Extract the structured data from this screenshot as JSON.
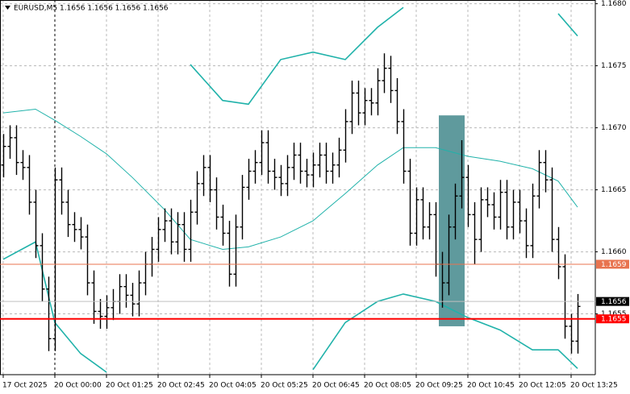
{
  "chart_data": {
    "type": "ohlc",
    "title": "EURUSD,M5 1.1656 1.1656 1.1656 1.1656",
    "color": "#000000",
    "open": [
      1.1667,
      1.16685,
      1.16692,
      1.16672,
      1.16668,
      1.1664,
      1.16605,
      1.1657,
      1.1653,
      1.16658,
      1.1664,
      1.16622,
      1.16618,
      1.16612,
      1.16575,
      1.16552,
      1.16548,
      1.16555,
      1.1656,
      1.16572,
      1.16565,
      1.16558,
      1.16575,
      1.1659,
      1.16602,
      1.16618,
      1.16625,
      1.16608,
      1.16622,
      1.16602,
      1.16632,
      1.16655,
      1.16668,
      1.1665,
      1.16628,
      1.16615,
      1.16582,
      1.1662,
      1.16652,
      1.16665,
      1.16672,
      1.16688,
      1.16665,
      1.1666,
      1.16655,
      1.16668,
      1.16678,
      1.16665,
      1.16662,
      1.1667,
      1.16678,
      1.16665,
      1.1667,
      1.16682,
      1.16705,
      1.16728,
      1.16712,
      1.16722,
      1.1672,
      1.16738,
      1.16748,
      1.1673,
      1.16705,
      1.16665,
      1.16615,
      1.16642,
      1.1662,
      1.1663,
      1.1659,
      1.16575,
      1.1662,
      1.16645,
      1.1666,
      1.1663,
      1.1661,
      1.16642,
      1.16638,
      1.16628,
      1.16648,
      1.1662,
      1.1664,
      1.16625,
      1.16605,
      1.16645,
      1.16672,
      1.16658,
      1.1661,
      1.16588,
      1.1654,
      1.16528
    ],
    "high": [
      1.16695,
      1.16702,
      1.16702,
      1.16682,
      1.16678,
      1.1665,
      1.16615,
      1.1658,
      1.16668,
      1.16668,
      1.1665,
      1.16632,
      1.16628,
      1.16622,
      1.16585,
      1.16562,
      1.16565,
      1.1657,
      1.16582,
      1.16582,
      1.16575,
      1.16585,
      1.166,
      1.16612,
      1.16628,
      1.16635,
      1.16635,
      1.16632,
      1.16632,
      1.16642,
      1.16665,
      1.16678,
      1.16678,
      1.1666,
      1.16638,
      1.16625,
      1.1663,
      1.16662,
      1.16675,
      1.16682,
      1.16698,
      1.16698,
      1.16675,
      1.1667,
      1.16678,
      1.16688,
      1.16688,
      1.16675,
      1.1668,
      1.16688,
      1.16688,
      1.1668,
      1.16692,
      1.16715,
      1.16738,
      1.16738,
      1.16732,
      1.16732,
      1.16748,
      1.1676,
      1.16758,
      1.1674,
      1.16715,
      1.16675,
      1.16652,
      1.16652,
      1.1664,
      1.1664,
      1.166,
      1.1663,
      1.16655,
      1.1669,
      1.1667,
      1.1664,
      1.16652,
      1.16652,
      1.16648,
      1.16658,
      1.16658,
      1.1665,
      1.1665,
      1.16635,
      1.16655,
      1.16682,
      1.16682,
      1.16668,
      1.1662,
      1.16598,
      1.1655,
      1.16566
    ],
    "low": [
      1.1666,
      1.16675,
      1.16662,
      1.16658,
      1.1663,
      1.16595,
      1.1656,
      1.1652,
      1.1652,
      1.1663,
      1.16612,
      1.16608,
      1.16602,
      1.16565,
      1.16542,
      1.16538,
      1.16538,
      1.16545,
      1.1655,
      1.16555,
      1.16548,
      1.16548,
      1.16565,
      1.1658,
      1.16592,
      1.16608,
      1.16598,
      1.16598,
      1.16592,
      1.16592,
      1.16622,
      1.16645,
      1.1664,
      1.16618,
      1.16605,
      1.16572,
      1.16572,
      1.1661,
      1.16642,
      1.16655,
      1.16662,
      1.16655,
      1.1665,
      1.16645,
      1.16645,
      1.16658,
      1.16655,
      1.16652,
      1.16652,
      1.1666,
      1.16655,
      1.16655,
      1.1666,
      1.16672,
      1.16695,
      1.16702,
      1.16702,
      1.1671,
      1.1671,
      1.16728,
      1.1672,
      1.16695,
      1.16655,
      1.16605,
      1.16605,
      1.1661,
      1.1661,
      1.1658,
      1.16555,
      1.16565,
      1.1661,
      1.16635,
      1.1662,
      1.1659,
      1.166,
      1.16628,
      1.16618,
      1.16618,
      1.1661,
      1.1661,
      1.16615,
      1.16595,
      1.16595,
      1.16635,
      1.16648,
      1.166,
      1.16578,
      1.1653,
      1.16518,
      1.16518
    ],
    "close": [
      1.16685,
      1.16692,
      1.16672,
      1.16668,
      1.1664,
      1.16605,
      1.1657,
      1.1653,
      1.16658,
      1.1664,
      1.16622,
      1.16618,
      1.16612,
      1.16575,
      1.16552,
      1.16548,
      1.16555,
      1.1656,
      1.16572,
      1.16565,
      1.16558,
      1.16575,
      1.1659,
      1.16602,
      1.16618,
      1.16625,
      1.16608,
      1.16622,
      1.16602,
      1.16632,
      1.16655,
      1.16668,
      1.1665,
      1.16628,
      1.16615,
      1.16582,
      1.1662,
      1.16652,
      1.16665,
      1.16672,
      1.16688,
      1.16665,
      1.1666,
      1.16655,
      1.16668,
      1.16678,
      1.16665,
      1.16662,
      1.1667,
      1.16678,
      1.16665,
      1.1667,
      1.16682,
      1.16705,
      1.16728,
      1.16712,
      1.16722,
      1.1672,
      1.16738,
      1.16748,
      1.1673,
      1.16705,
      1.16665,
      1.16615,
      1.16642,
      1.1662,
      1.1663,
      1.1659,
      1.16575,
      1.1662,
      1.16645,
      1.1666,
      1.1663,
      1.1661,
      1.16642,
      1.16638,
      1.16628,
      1.16648,
      1.1662,
      1.1664,
      1.16625,
      1.16605,
      1.16645,
      1.16672,
      1.16658,
      1.1661,
      1.16588,
      1.1654,
      1.16528,
      1.16556
    ],
    "xlim": [
      -0.5,
      91.75
    ],
    "xticks": [
      {
        "value": 0,
        "label": "17 Oct 2025"
      },
      {
        "value": 8,
        "label": "20 Oct 00:00"
      },
      {
        "value": 16,
        "label": "20 Oct 01:25"
      },
      {
        "value": 24,
        "label": "20 Oct 02:45"
      },
      {
        "value": 32,
        "label": "20 Oct 04:05"
      },
      {
        "value": 40,
        "label": "20 Oct 05:25"
      },
      {
        "value": 48,
        "label": "20 Oct 06:45"
      },
      {
        "value": 56,
        "label": "20 Oct 08:05"
      },
      {
        "value": 64,
        "label": "20 Oct 09:25"
      },
      {
        "value": 72,
        "label": "20 Oct 10:45"
      },
      {
        "value": 80,
        "label": "20 Oct 12:05"
      },
      {
        "value": 88,
        "label": "20 Oct 13:25"
      }
    ],
    "ylim": [
      1.16501,
      1.16803
    ],
    "yticks": [
      {
        "value": 1.168,
        "label": "1.1680"
      },
      1.1675,
      {
        "value": 1.167,
        "label": "1.1670"
      },
      1.1665,
      {
        "value": 1.166,
        "label": "1.1660"
      },
      1.1655
    ],
    "grid": true,
    "separator": 8,
    "bands": {
      "color": "#20b2aa",
      "x": [
        0,
        5,
        8,
        12,
        16,
        20,
        25,
        29,
        34,
        38,
        43,
        48,
        53,
        58,
        62,
        67,
        72,
        77,
        82,
        86,
        89
      ],
      "upper": [
        null,
        null,
        null,
        null,
        null,
        null,
        null,
        1.16751,
        1.16722,
        1.16719,
        1.16755,
        1.16761,
        1.16755,
        1.16781,
        1.16797,
        null,
        null,
        null,
        null,
        1.16792,
        1.16774
      ],
      "middle": [
        1.16712,
        1.16715,
        1.16706,
        1.16693,
        1.16679,
        1.1666,
        1.16634,
        1.1661,
        1.16602,
        1.16604,
        1.16612,
        1.16625,
        1.16647,
        1.1667,
        1.16684,
        1.16684,
        1.16677,
        1.16673,
        1.16667,
        1.16657,
        1.16636
      ],
      "lower": [
        1.16594,
        1.16608,
        1.16543,
        1.16518,
        1.16503,
        null,
        null,
        null,
        null,
        null,
        null,
        1.16505,
        1.16543,
        1.1656,
        1.16566,
        1.1656,
        1.16547,
        1.16537,
        1.16521,
        1.16521,
        1.16506
      ]
    },
    "highlight": {
      "x": [
        67.5,
        71.5
      ],
      "y": [
        1.1654,
        1.1671
      ],
      "color": "#5f9a9d"
    },
    "levels": [
      {
        "value": 1.1659,
        "color": "#e8734f",
        "text_color": "#ffffff"
      },
      {
        "value": 1.1656,
        "color": "#c0c0c0",
        "box_color": "#000000",
        "text_color": "#ffffff"
      },
      {
        "value": 1.16546,
        "label": "1.1655",
        "color": "#ff0000",
        "text_color": "#ffffff"
      }
    ]
  }
}
